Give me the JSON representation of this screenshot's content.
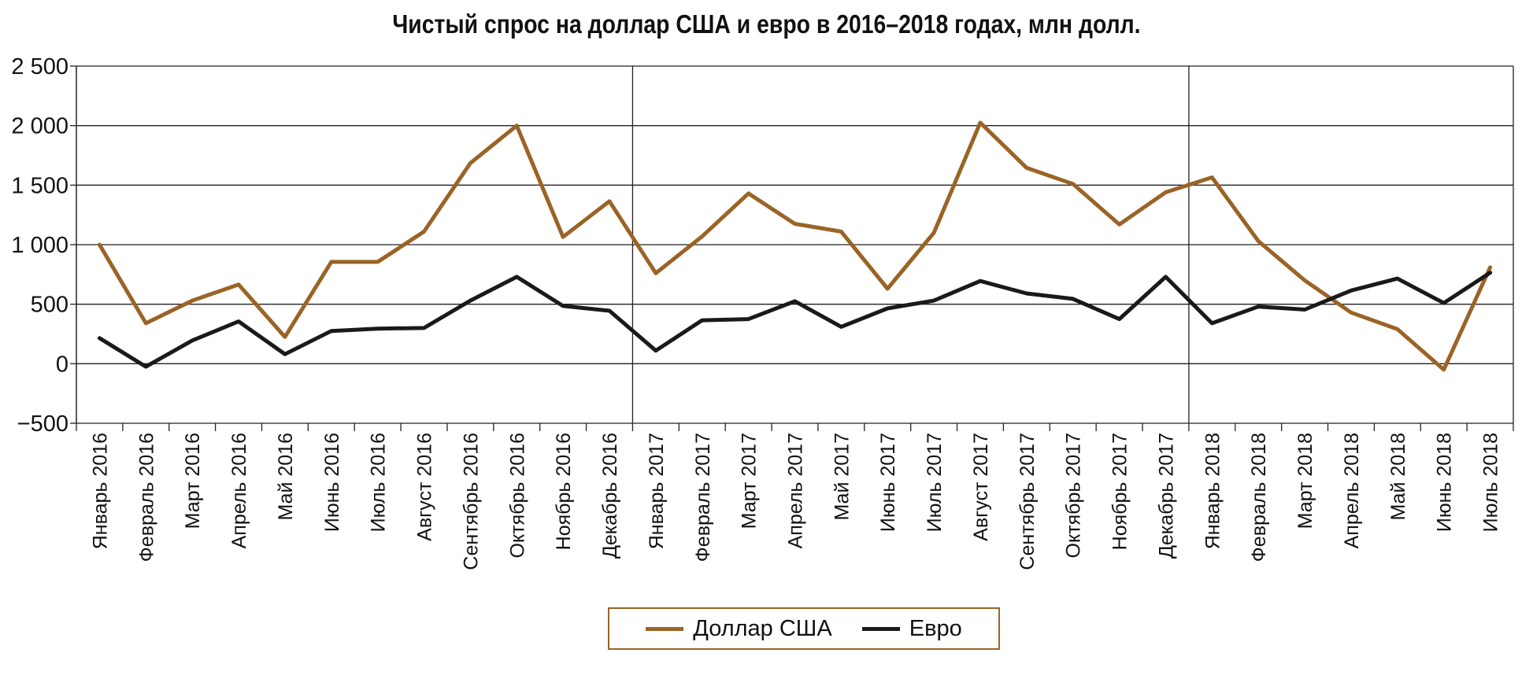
{
  "chart_data": {
    "type": "line",
    "title": "Чистый спрос на доллар США и евро в 2016–2018 годах, млн долл.",
    "xlabel": "",
    "ylabel": "",
    "ylim": [
      -500,
      2500
    ],
    "y_ticks": [
      -500,
      0,
      500,
      1000,
      1500,
      2000,
      2500
    ],
    "y_tick_labels": [
      "−500",
      "0",
      "500",
      "1 000",
      "1 500",
      "2 000",
      "2 500"
    ],
    "grid": true,
    "legend_position": "bottom",
    "categories": [
      "Январь 2016",
      "Февраль 2016",
      "Март 2016",
      "Апрель 2016",
      "Май 2016",
      "Июнь 2016",
      "Июль 2016",
      "Август 2016",
      "Сентябрь 2016",
      "Октябрь 2016",
      "Ноябрь 2016",
      "Декабрь 2016",
      "Январь 2017",
      "Февраль 2017",
      "Март 2017",
      "Апрель 2017",
      "Май 2017",
      "Июнь 2017",
      "Июль 2017",
      "Август 2017",
      "Сентябрь 2017",
      "Октябрь 2017",
      "Ноябрь 2017",
      "Декабрь 2017",
      "Январь 2018",
      "Февраль 2018",
      "Март 2018",
      "Апрель 2018",
      "Май 2018",
      "Июнь 2018",
      "Июль 2018"
    ],
    "series": [
      {
        "name": "Доллар США",
        "color": "#9a6426",
        "values": [
          1000,
          340,
          530,
          665,
          225,
          855,
          855,
          1110,
          1685,
          2000,
          1065,
          1365,
          760,
          1070,
          1430,
          1175,
          1110,
          630,
          1100,
          2025,
          1645,
          1510,
          1170,
          1440,
          1565,
          1030,
          700,
          430,
          290,
          -50,
          810
        ]
      },
      {
        "name": "Евро",
        "color": "#1a1a1a",
        "values": [
          215,
          -25,
          195,
          355,
          80,
          275,
          295,
          300,
          530,
          730,
          485,
          445,
          110,
          365,
          375,
          525,
          310,
          465,
          530,
          695,
          590,
          545,
          375,
          730,
          340,
          480,
          455,
          615,
          715,
          510,
          765
        ]
      }
    ],
    "year_separators_after_index": [
      11,
      23
    ]
  }
}
